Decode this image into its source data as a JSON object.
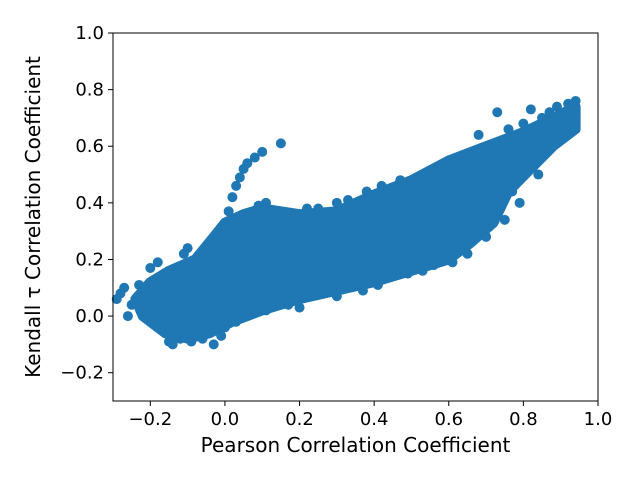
{
  "chart_data": {
    "type": "scatter",
    "title": "",
    "xlabel": "Pearson Correlation Coefficient",
    "ylabel": "Kendall τ Correlation Coefficient",
    "xlim": [
      -0.3,
      1.0
    ],
    "ylim": [
      -0.3,
      1.0
    ],
    "xticks": [
      -0.2,
      0.0,
      0.2,
      0.4,
      0.6,
      0.8,
      1.0
    ],
    "xtick_labels": [
      "−0.2",
      "0.0",
      "0.2",
      "0.4",
      "0.6",
      "0.8",
      "1.0"
    ],
    "yticks": [
      -0.2,
      0.0,
      0.2,
      0.4,
      0.6,
      0.8,
      1.0
    ],
    "ytick_labels": [
      "−0.2",
      "0.0",
      "0.2",
      "0.4",
      "0.6",
      "0.8",
      "1.0"
    ],
    "grid": false,
    "legend": "none",
    "marker_color": "#1f77b4",
    "series": [
      {
        "points": [
          [
            -0.29,
            0.06
          ],
          [
            -0.28,
            0.08
          ],
          [
            -0.27,
            0.1
          ],
          [
            -0.26,
            0.0
          ],
          [
            -0.25,
            0.04
          ],
          [
            -0.24,
            0.05
          ],
          [
            -0.23,
            0.11
          ],
          [
            -0.22,
            0.02
          ],
          [
            -0.21,
            0.05
          ],
          [
            -0.2,
            0.17
          ],
          [
            -0.19,
            0.1
          ],
          [
            -0.19,
            -0.02
          ],
          [
            -0.18,
            0.19
          ],
          [
            -0.17,
            0.03
          ],
          [
            -0.16,
            0.09
          ],
          [
            -0.16,
            -0.05
          ],
          [
            -0.15,
            0.12
          ],
          [
            -0.15,
            -0.09
          ],
          [
            -0.14,
            -0.1
          ],
          [
            -0.13,
            0.16
          ],
          [
            -0.12,
            0.02
          ],
          [
            -0.12,
            -0.08
          ],
          [
            -0.11,
            0.22
          ],
          [
            -0.11,
            -0.06
          ],
          [
            -0.1,
            0.24
          ],
          [
            -0.1,
            0.1
          ],
          [
            -0.1,
            -0.03
          ],
          [
            -0.09,
            0.06
          ],
          [
            -0.09,
            -0.09
          ],
          [
            -0.08,
            0.14
          ],
          [
            -0.08,
            -0.02
          ],
          [
            -0.07,
            0.2
          ],
          [
            -0.07,
            0.05
          ],
          [
            -0.06,
            -0.08
          ],
          [
            -0.06,
            0.12
          ],
          [
            -0.05,
            0.0
          ],
          [
            -0.05,
            0.17
          ],
          [
            -0.04,
            0.23
          ],
          [
            -0.04,
            -0.04
          ],
          [
            -0.03,
            0.08
          ],
          [
            -0.03,
            -0.1
          ],
          [
            -0.02,
            0.15
          ],
          [
            -0.02,
            0.27
          ],
          [
            -0.01,
            0.02
          ],
          [
            -0.01,
            -0.07
          ],
          [
            0.0,
            0.11
          ],
          [
            0.0,
            0.24
          ],
          [
            0.0,
            -0.04
          ],
          [
            0.01,
            0.37
          ],
          [
            0.01,
            0.18
          ],
          [
            0.02,
            0.42
          ],
          [
            0.02,
            0.05
          ],
          [
            0.03,
            0.46
          ],
          [
            0.03,
            -0.02
          ],
          [
            0.04,
            0.49
          ],
          [
            0.04,
            0.21
          ],
          [
            0.05,
            0.52
          ],
          [
            0.05,
            0.09
          ],
          [
            0.06,
            0.54
          ],
          [
            0.06,
            0.3
          ],
          [
            0.07,
            0.02
          ],
          [
            0.08,
            0.56
          ],
          [
            0.08,
            0.15
          ],
          [
            0.09,
            0.39
          ],
          [
            0.09,
            0.06
          ],
          [
            0.1,
            0.58
          ],
          [
            0.1,
            0.24
          ],
          [
            0.11,
            0.4
          ],
          [
            0.11,
            0.02
          ],
          [
            0.12,
            0.12
          ],
          [
            0.13,
            0.33
          ],
          [
            0.14,
            0.07
          ],
          [
            0.15,
            0.61
          ],
          [
            0.15,
            0.22
          ],
          [
            0.16,
            0.35
          ],
          [
            0.17,
            0.04
          ],
          [
            0.18,
            0.14
          ],
          [
            0.19,
            0.36
          ],
          [
            0.2,
            0.27
          ],
          [
            0.2,
            0.03
          ],
          [
            0.22,
            0.38
          ],
          [
            0.22,
            0.1
          ],
          [
            0.24,
            0.2
          ],
          [
            0.25,
            0.38
          ],
          [
            0.26,
            0.08
          ],
          [
            0.28,
            0.3
          ],
          [
            0.28,
            0.16
          ],
          [
            0.3,
            0.4
          ],
          [
            0.3,
            0.07
          ],
          [
            0.32,
            0.24
          ],
          [
            0.33,
            0.41
          ],
          [
            0.34,
            0.14
          ],
          [
            0.36,
            0.33
          ],
          [
            0.37,
            0.09
          ],
          [
            0.38,
            0.44
          ],
          [
            0.39,
            0.2
          ],
          [
            0.4,
            0.34
          ],
          [
            0.41,
            0.11
          ],
          [
            0.42,
            0.46
          ],
          [
            0.43,
            0.27
          ],
          [
            0.44,
            0.14
          ],
          [
            0.45,
            0.4
          ],
          [
            0.46,
            0.18
          ],
          [
            0.47,
            0.48
          ],
          [
            0.48,
            0.3
          ],
          [
            0.49,
            0.15
          ],
          [
            0.5,
            0.44
          ],
          [
            0.51,
            0.22
          ],
          [
            0.52,
            0.33
          ],
          [
            0.53,
            0.16
          ],
          [
            0.54,
            0.48
          ],
          [
            0.55,
            0.28
          ],
          [
            0.56,
            0.18
          ],
          [
            0.57,
            0.4
          ],
          [
            0.58,
            0.52
          ],
          [
            0.59,
            0.24
          ],
          [
            0.6,
            0.33
          ],
          [
            0.61,
            0.19
          ],
          [
            0.62,
            0.5
          ],
          [
            0.63,
            0.27
          ],
          [
            0.64,
            0.4
          ],
          [
            0.65,
            0.22
          ],
          [
            0.66,
            0.56
          ],
          [
            0.67,
            0.33
          ],
          [
            0.68,
            0.64
          ],
          [
            0.69,
            0.45
          ],
          [
            0.7,
            0.28
          ],
          [
            0.71,
            0.6
          ],
          [
            0.72,
            0.38
          ],
          [
            0.73,
            0.72
          ],
          [
            0.74,
            0.52
          ],
          [
            0.75,
            0.34
          ],
          [
            0.76,
            0.66
          ],
          [
            0.77,
            0.44
          ],
          [
            0.78,
            0.58
          ],
          [
            0.79,
            0.4
          ],
          [
            0.8,
            0.68
          ],
          [
            0.81,
            0.52
          ],
          [
            0.82,
            0.73
          ],
          [
            0.83,
            0.6
          ],
          [
            0.84,
            0.5
          ],
          [
            0.85,
            0.7
          ],
          [
            0.86,
            0.62
          ],
          [
            0.87,
            0.72
          ],
          [
            0.88,
            0.66
          ],
          [
            0.89,
            0.74
          ],
          [
            0.9,
            0.7
          ],
          [
            0.91,
            0.66
          ],
          [
            0.92,
            0.75
          ],
          [
            0.93,
            0.72
          ],
          [
            0.94,
            0.76
          ],
          [
            0.94,
            0.71
          ]
        ]
      }
    ],
    "dense_region": {
      "outline": [
        [
          -0.2,
          0.12
        ],
        [
          -0.15,
          0.16
        ],
        [
          -0.08,
          0.2
        ],
        [
          -0.03,
          0.28
        ],
        [
          0.0,
          0.33
        ],
        [
          0.05,
          0.36
        ],
        [
          0.1,
          0.38
        ],
        [
          0.2,
          0.36
        ],
        [
          0.3,
          0.37
        ],
        [
          0.4,
          0.43
        ],
        [
          0.5,
          0.48
        ],
        [
          0.6,
          0.55
        ],
        [
          0.7,
          0.6
        ],
        [
          0.8,
          0.65
        ],
        [
          0.88,
          0.7
        ],
        [
          0.94,
          0.74
        ],
        [
          0.94,
          0.66
        ],
        [
          0.88,
          0.6
        ],
        [
          0.82,
          0.52
        ],
        [
          0.76,
          0.44
        ],
        [
          0.72,
          0.33
        ],
        [
          0.66,
          0.26
        ],
        [
          0.6,
          0.2
        ],
        [
          0.5,
          0.16
        ],
        [
          0.4,
          0.12
        ],
        [
          0.3,
          0.09
        ],
        [
          0.2,
          0.06
        ],
        [
          0.1,
          0.02
        ],
        [
          0.02,
          -0.02
        ],
        [
          -0.04,
          -0.06
        ],
        [
          -0.1,
          -0.08
        ],
        [
          -0.16,
          -0.06
        ],
        [
          -0.22,
          0.0
        ],
        [
          -0.24,
          0.06
        ]
      ]
    }
  }
}
